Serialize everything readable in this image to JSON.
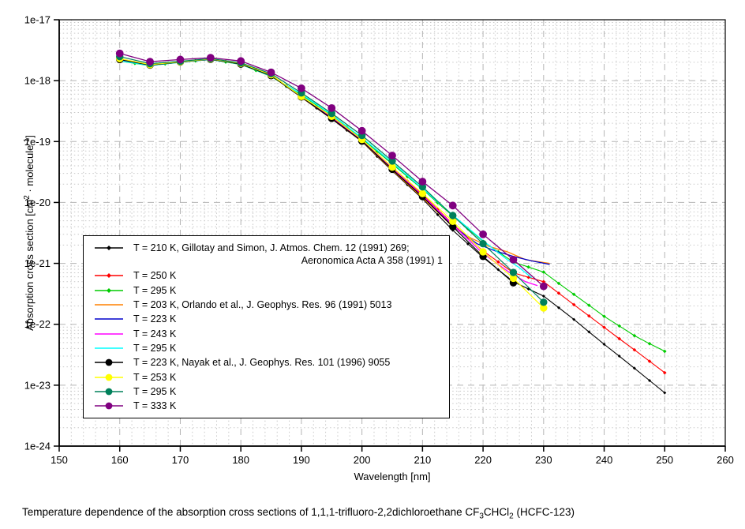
{
  "caption": {
    "parts": [
      "Temperature dependence of the absorption cross sections of 1,1,1-trifluoro-2,2dichloroethane CF",
      "3",
      "CHCl",
      "2",
      " (HCFC-123)"
    ]
  },
  "axes": {
    "x": {
      "title": "Wavelength [nm]",
      "min": 150,
      "max": 260,
      "major_step": 10,
      "minor_step": 2,
      "tick_labels": [
        "150",
        "160",
        "170",
        "180",
        "190",
        "200",
        "210",
        "220",
        "230",
        "240",
        "250",
        "260"
      ]
    },
    "y": {
      "scale": "log",
      "min_exp": -24,
      "max_exp": -17,
      "title_parts": [
        "Absorption cross section [cm",
        "2",
        " · molecule",
        "-1",
        "]"
      ],
      "tick_labels": [
        "1e-17",
        "1e-18",
        "1e-19",
        "1e-20",
        "1e-21",
        "1e-22",
        "1e-23",
        "1e-24"
      ]
    }
  },
  "colors": {
    "grid_major": "#b5b5b5",
    "grid_minor": "#c9c9c9",
    "frame": "#000000",
    "background": "#ffffff"
  },
  "chart_data": {
    "type": "line",
    "title": "",
    "xlabel": "Wavelength [nm]",
    "ylabel": "Absorption cross section [cm2 · molecule-1]",
    "x_range": [
      150,
      260
    ],
    "y_range": [
      1e-24,
      1e-17
    ],
    "y_scale": "log",
    "grid": true,
    "legend_position": "inside-left",
    "series": [
      {
        "label": "T = 210 K, Gillotay and Simon, J. Atmos. Chem. 12 (1991) 269;",
        "label2": "Aeronomica Acta A 358 (1991) 1",
        "color": "#000000",
        "marker": "diamond",
        "marker_size": 2.0,
        "width": 1.1,
        "x": [
          160,
          162.5,
          165,
          167.5,
          170,
          172.5,
          175,
          177.5,
          180,
          182.5,
          185,
          187.5,
          190,
          192.5,
          195,
          197.5,
          200,
          202.5,
          205,
          207.5,
          210,
          212.5,
          215,
          217.5,
          220,
          222.5,
          225,
          227.5,
          230,
          232.5,
          235,
          237.5,
          240,
          242.5,
          245,
          247.5,
          250
        ],
        "y": [
          2.15e-18,
          1.96e-18,
          1.78e-18,
          1.9e-18,
          2.02e-18,
          2.13e-18,
          2.25e-18,
          2.06e-18,
          1.88e-18,
          1.52e-18,
          1.22e-18,
          8e-19,
          5.3e-19,
          3.53e-19,
          2.35e-19,
          1.53e-19,
          1e-19,
          5.7e-20,
          3.3e-20,
          1.95e-20,
          1.15e-20,
          6.3e-21,
          3.5e-21,
          2.09e-21,
          1.25e-21,
          7.9e-22,
          5e-22,
          3.8e-22,
          2.9e-22,
          1.87e-22,
          1.2e-22,
          7.5e-23,
          4.7e-23,
          3e-23,
          1.9e-23,
          1.19e-23,
          7.5e-24
        ]
      },
      {
        "label": "T = 250 K",
        "color": "#ff0000",
        "marker": "diamond",
        "marker_size": 2.3,
        "width": 1.1,
        "x": [
          160,
          162.5,
          165,
          167.5,
          170,
          172.5,
          175,
          177.5,
          180,
          182.5,
          185,
          187.5,
          190,
          192.5,
          195,
          197.5,
          200,
          202.5,
          205,
          207.5,
          210,
          212.5,
          215,
          217.5,
          220,
          222.5,
          225,
          227.5,
          230,
          232.5,
          235,
          237.5,
          240,
          242.5,
          245,
          247.5,
          250
        ],
        "y": [
          2.18e-18,
          1.98e-18,
          1.8e-18,
          1.91e-18,
          2.03e-18,
          2.14e-18,
          2.26e-18,
          2.07e-18,
          1.9e-18,
          1.54e-18,
          1.25e-18,
          8.3e-19,
          5.5e-19,
          3.71e-19,
          2.5e-19,
          1.62e-19,
          1.05e-19,
          6.2e-20,
          3.7e-20,
          2.24e-20,
          1.35e-20,
          7.7e-21,
          4.4e-21,
          2.65e-21,
          1.6e-21,
          1.06e-21,
          7e-22,
          5.9e-22,
          5e-22,
          3.24e-22,
          2.1e-22,
          1.37e-22,
          8.9e-23,
          5.8e-23,
          3.8e-23,
          2.47e-23,
          1.6e-23
        ]
      },
      {
        "label": "T = 295 K",
        "color": "#00cc00",
        "marker": "diamond",
        "marker_size": 2.3,
        "width": 1.1,
        "x": [
          160,
          162.5,
          165,
          167.5,
          170,
          172.5,
          175,
          177.5,
          180,
          182.5,
          185,
          187.5,
          190,
          192.5,
          195,
          197.5,
          200,
          202.5,
          205,
          207.5,
          210,
          212.5,
          215,
          217.5,
          220,
          222.5,
          225,
          227.5,
          230,
          232.5,
          235,
          237.5,
          240,
          242.5,
          245,
          247.5,
          250
        ],
        "y": [
          2.1e-18,
          1.92e-18,
          1.76e-18,
          1.88e-18,
          2e-18,
          2.11e-18,
          2.22e-18,
          2.02e-18,
          1.84e-18,
          1.47e-18,
          1.17e-18,
          8.2e-19,
          5.8e-19,
          3.96e-19,
          2.7e-19,
          1.74e-19,
          1.12e-19,
          6.9e-20,
          4.3e-20,
          2.66e-20,
          1.65e-20,
          9.9e-21,
          6e-21,
          3.7e-21,
          2.3e-21,
          1.55e-21,
          1.05e-21,
          8.7e-22,
          7.2e-22,
          4.7e-22,
          3.1e-22,
          2.05e-22,
          1.35e-22,
          9.4e-23,
          6.5e-23,
          4.8e-23,
          3.6e-23
        ]
      },
      {
        "label": "T = 203 K, Orlando et al., J. Geophys. Res. 96 (1991) 5013",
        "color": "#ff8000",
        "marker": "none",
        "marker_size": 0,
        "width": 1.3,
        "x": [
          160,
          165,
          170,
          175,
          180,
          185,
          190,
          195,
          200,
          205,
          210,
          215,
          218,
          221,
          224,
          227,
          231
        ],
        "y": [
          2.16e-18,
          1.79e-18,
          2.02e-18,
          2.25e-18,
          1.88e-18,
          1.22e-18,
          5.35e-19,
          2.4e-19,
          1.01e-19,
          3.4e-20,
          1.2e-20,
          4e-21,
          2.6e-21,
          1.9e-21,
          1.55e-21,
          1.15e-21,
          1e-21
        ]
      },
      {
        "label": "T = 223 K",
        "color": "#0000cc",
        "marker": "none",
        "marker_size": 0,
        "width": 1.3,
        "x": [
          160,
          165,
          170,
          175,
          180,
          185,
          190,
          195,
          200,
          205,
          210,
          215,
          219,
          222,
          225,
          228,
          231
        ],
        "y": [
          2.17e-18,
          1.8e-18,
          2.02e-18,
          2.25e-18,
          1.89e-18,
          1.23e-18,
          5.4e-19,
          2.45e-19,
          1.03e-19,
          3.5e-20,
          1.28e-20,
          4.1e-21,
          2.1e-21,
          1.6e-21,
          1.3e-21,
          1.1e-21,
          9.6e-22
        ]
      },
      {
        "label": "T = 243 K",
        "color": "#ff00ff",
        "marker": "none",
        "marker_size": 0,
        "width": 1.3,
        "x": [
          160,
          165,
          170,
          175,
          180,
          185,
          190,
          195,
          200,
          205,
          210,
          215,
          220,
          224,
          227,
          229
        ],
        "y": [
          2.16e-18,
          1.79e-18,
          2.02e-18,
          2.25e-18,
          1.89e-18,
          1.23e-18,
          5.45e-19,
          2.45e-19,
          1.04e-19,
          3.6e-20,
          1.3e-20,
          4.3e-21,
          1.45e-21,
          7.5e-22,
          5e-22,
          4.3e-22
        ]
      },
      {
        "label": "T = 295 K",
        "color": "#00ffff",
        "marker": "none",
        "marker_size": 0,
        "width": 1.3,
        "x": [
          160,
          165,
          170,
          175,
          180,
          185,
          190,
          195,
          200,
          205,
          210,
          215,
          220,
          224,
          226,
          228
        ],
        "y": [
          2.12e-18,
          1.77e-18,
          2.01e-18,
          2.23e-18,
          1.86e-18,
          1.19e-18,
          6e-19,
          2.75e-19,
          1.15e-19,
          4.5e-20,
          1.7e-20,
          6.2e-21,
          2.35e-21,
          1.15e-21,
          8.5e-22,
          5.8e-22
        ]
      },
      {
        "label": "T = 223 K, Nayak et al., J. Geophys. Res. 101 (1996) 9055",
        "color": "#000000",
        "marker": "circle",
        "marker_size": 4.2,
        "width": 1.2,
        "x": [
          160,
          165,
          170,
          175,
          180,
          185,
          190,
          195,
          200,
          205,
          210,
          215,
          220,
          225
        ],
        "y": [
          2.22e-18,
          1.8e-18,
          2.02e-18,
          2.24e-18,
          1.87e-18,
          1.21e-18,
          5.4e-19,
          2.4e-19,
          1.02e-19,
          3.5e-20,
          1.25e-20,
          4e-21,
          1.3e-21,
          4.8e-22
        ]
      },
      {
        "label": "T = 253 K",
        "color": "#ffff00",
        "marker": "circle",
        "marker_size": 4.2,
        "width": 1.2,
        "x": [
          160,
          165,
          170,
          175,
          180,
          185,
          190,
          195,
          200,
          205,
          210,
          215,
          220,
          225,
          230
        ],
        "y": [
          2.3e-18,
          1.83e-18,
          2.04e-18,
          2.27e-18,
          1.92e-18,
          1.25e-18,
          5.5e-19,
          2.6e-19,
          1.08e-19,
          3.8e-20,
          1.4e-20,
          4.9e-21,
          1.55e-21,
          5.7e-22,
          1.85e-22
        ]
      },
      {
        "label": "T = 295 K",
        "color": "#00805a",
        "marker": "circle",
        "marker_size": 4.2,
        "width": 1.2,
        "x": [
          160,
          165,
          170,
          175,
          180,
          185,
          190,
          195,
          200,
          205,
          210,
          215,
          220,
          225,
          230
        ],
        "y": [
          2.48e-18,
          1.9e-18,
          2.08e-18,
          2.3e-18,
          1.96e-18,
          1.3e-18,
          6.3e-19,
          2.9e-19,
          1.26e-19,
          4.8e-20,
          1.8e-20,
          6.1e-21,
          2.1e-21,
          7.1e-22,
          2.3e-22
        ]
      },
      {
        "label": "T = 333 K",
        "color": "#800080",
        "marker": "circle",
        "marker_size": 4.4,
        "width": 1.3,
        "x": [
          160,
          165,
          170,
          175,
          180,
          185,
          190,
          195,
          200,
          205,
          210,
          215,
          220,
          225,
          230
        ],
        "y": [
          2.8e-18,
          2.05e-18,
          2.22e-18,
          2.38e-18,
          2.1e-18,
          1.37e-18,
          7.5e-19,
          3.55e-19,
          1.5e-19,
          5.9e-20,
          2.2e-20,
          8.9e-21,
          3e-21,
          1.15e-21,
          4.2e-22
        ]
      }
    ]
  }
}
